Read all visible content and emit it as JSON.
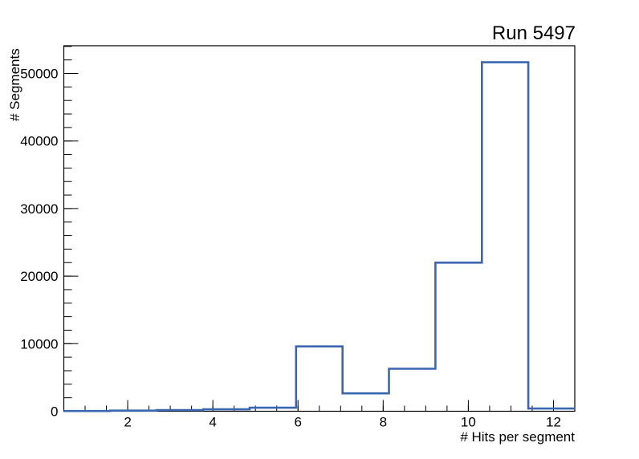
{
  "chart_data": {
    "type": "bar",
    "subtype": "step-histogram",
    "title": "Run 5497",
    "xlabel": "# Hits per segment",
    "ylabel": "# Segments",
    "line_color": "#3a67b0",
    "axis_color": "#000000",
    "background_color": "#ffffff",
    "grid": false,
    "legend": null,
    "xlim": [
      0.5,
      12.5
    ],
    "ylim": [
      0,
      54100
    ],
    "bin_edges": [
      0.5,
      1.5909,
      2.6818,
      3.7727,
      4.8636,
      5.9545,
      7.0455,
      8.1364,
      9.2273,
      10.3182,
      11.4091,
      12.5
    ],
    "bin_counts": [
      40,
      90,
      170,
      280,
      520,
      9600,
      2650,
      6300,
      22000,
      51650,
      400
    ],
    "x_major_ticks": [
      2,
      4,
      6,
      8,
      10,
      12
    ],
    "x_minor_step": 0.5,
    "y_major_ticks": [
      0,
      10000,
      20000,
      30000,
      40000,
      50000
    ],
    "y_minor_step": 2000
  }
}
